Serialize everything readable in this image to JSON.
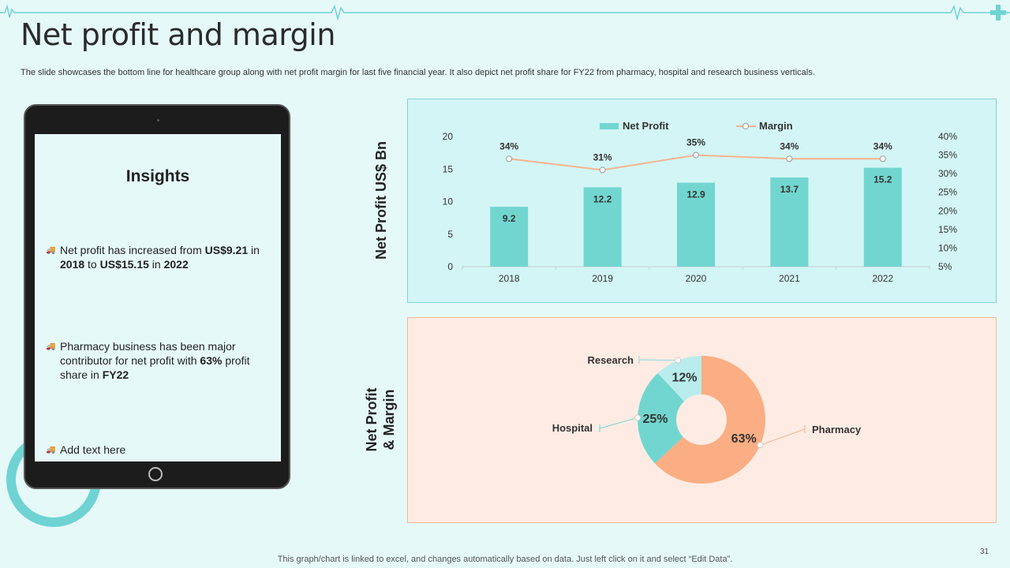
{
  "slide": {
    "title": "Net profit and margin",
    "subtitle": "The slide showcases the bottom line for healthcare group along with net profit margin for last five financial year. It also depict net profit share for FY22 from pharmacy, hospital and research business verticals.",
    "footer": "This graph/chart is linked to excel, and changes automatically based on data. Just left click on it and select “Edit Data”.",
    "page_number": "31"
  },
  "insights": {
    "title": "Insights",
    "bullets": [
      [
        {
          "t": "Net profit has increased from ",
          "b": false
        },
        {
          "t": "US$9.21",
          "b": true
        },
        {
          "t": " in ",
          "b": false
        },
        {
          "t": "2018",
          "b": true
        },
        {
          "t": " to ",
          "b": false
        },
        {
          "t": "US$15.15",
          "b": true
        },
        {
          "t": " in ",
          "b": false
        },
        {
          "t": "2022",
          "b": true
        }
      ],
      [
        {
          "t": "Pharmacy business has been major contributor for net profit with ",
          "b": false
        },
        {
          "t": "63%",
          "b": true
        },
        {
          "t": " profit share in ",
          "b": false
        },
        {
          "t": "FY22",
          "b": true
        }
      ],
      [
        {
          "t": "Add text here",
          "b": false
        }
      ]
    ],
    "bullet_icon": "truck-icon"
  },
  "labels": {
    "bar_chart_side": "Net Profit US$ Bn",
    "donut_chart_side": "Net Profit & Margin"
  },
  "colors": {
    "accent": "#6fd3d3",
    "bar": "#72d6d0",
    "margin_line": "#f6b48f",
    "pharmacy": "#fbae83",
    "hospital": "#72d6d0",
    "research": "#b9ecec"
  },
  "chart_data": [
    {
      "type": "bar",
      "categories": [
        "2018",
        "2019",
        "2020",
        "2021",
        "2022"
      ],
      "series": [
        {
          "name": "Net Profit",
          "type": "bar",
          "axis": "left",
          "values": [
            9.2,
            12.2,
            12.9,
            13.7,
            15.2
          ],
          "labels": [
            "9.2",
            "12.2",
            "12.9",
            "13.7",
            "15.2"
          ]
        },
        {
          "name": "Margin",
          "type": "line",
          "axis": "right",
          "values": [
            34,
            31,
            35,
            34,
            34
          ],
          "labels": [
            "34%",
            "31%",
            "35%",
            "34%",
            "34%"
          ]
        }
      ],
      "y_left": {
        "min": 0,
        "max": 20,
        "ticks": [
          "0",
          "5",
          "10",
          "15",
          "20"
        ]
      },
      "y_right": {
        "min": 5,
        "max": 40,
        "ticks": [
          "5%",
          "10%",
          "15%",
          "20%",
          "25%",
          "30%",
          "35%",
          "40%"
        ]
      },
      "legend": "top",
      "grid": false
    },
    {
      "type": "pie",
      "donut": true,
      "slices": [
        {
          "name": "Pharmacy",
          "value": 63,
          "label": "63%"
        },
        {
          "name": "Hospital",
          "value": 25,
          "label": "25%"
        },
        {
          "name": "Research",
          "value": 12,
          "label": "12%"
        }
      ],
      "legend": "callouts"
    }
  ]
}
